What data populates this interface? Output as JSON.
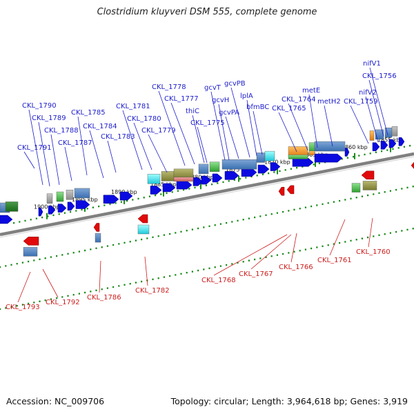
{
  "header": {
    "title": "Clostridium kluyveri DSM 555, complete genome"
  },
  "footer": {
    "accession": "Accession: NC_009706",
    "summary": "Topology: circular; Length: 3,964,618 bp; Genes: 3,919"
  },
  "scale": {
    "ticks": [
      {
        "pos": 1900000,
        "label": "1900 kbp"
      },
      {
        "pos": 1895000,
        "label": "1895 kbp"
      },
      {
        "pos": 1890000,
        "label": "1890 kbp"
      },
      {
        "pos": 1885000,
        "label": "1885 kbp"
      },
      {
        "pos": 1880000,
        "label": "1880 kbp"
      },
      {
        "pos": 1875000,
        "label": "1875 kbp"
      },
      {
        "pos": 1870000,
        "label": "1870 kbp"
      },
      {
        "pos": 1865000,
        "label": "1865 kbp"
      },
      {
        "pos": 1860000,
        "label": "1860 kbp"
      },
      {
        "pos": 1855000,
        "label": "1855 kbp"
      }
    ]
  },
  "genes_forward": [
    "CKL_1791",
    "CKL_1790",
    "CKL_1789",
    "CKL_1788",
    "CKL_1787",
    "CKL_1785",
    "CKL_1784",
    "CKL_1783",
    "CKL_1781",
    "CKL_1780",
    "CKL_1779",
    "CKL_1778",
    "CKL_1777",
    "thiC",
    "CKL_1775",
    "gcvT",
    "gcvH",
    "gcvPA",
    "gcvPB",
    "lplA",
    "bfmBC",
    "CKL_1765",
    "CKL_1764",
    "metE",
    "metH2",
    "CKL_1759",
    "nifV2",
    "CKL_1756",
    "nifV1"
  ],
  "genes_reverse": [
    "CKL_1793",
    "CKL_1792",
    "CKL_1786",
    "CKL_1782",
    "CKL_1768",
    "CKL_1767",
    "CKL_1766",
    "CKL_1761",
    "CKL_1760"
  ],
  "colors": {
    "forward_label": "#1c1ccc",
    "reverse_label": "#cc1c1c",
    "forward_arrow": "#0a0ae0",
    "reverse_arrow": "#e00a0a",
    "backbone": "#808080",
    "tick": "#1e8c1e"
  }
}
